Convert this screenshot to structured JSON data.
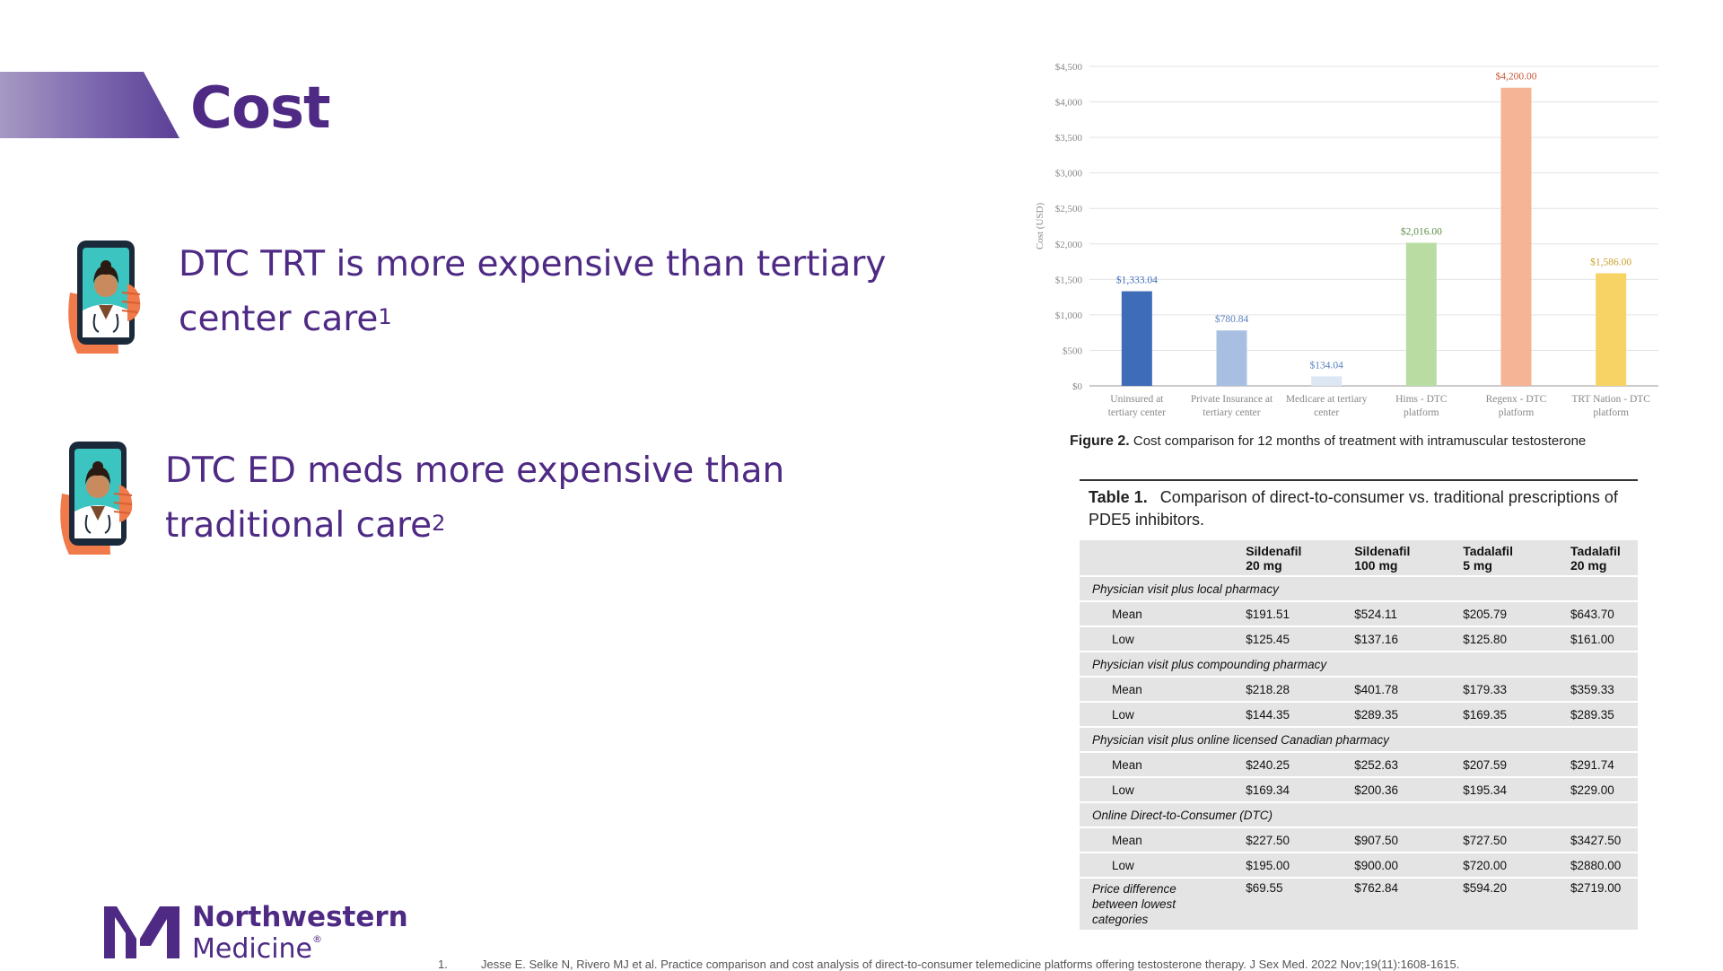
{
  "slide": {
    "title": "Cost",
    "bullets": [
      {
        "text": "DTC TRT is more expensive than tertiary center care",
        "sup": "1"
      },
      {
        "text": "DTC ED meds more expensive than traditional care",
        "sup": "2"
      }
    ],
    "logo": {
      "line1": "Northwestern",
      "line2": "Medicine",
      "mark": "®"
    },
    "footnote": {
      "num": "1.",
      "text": "Jesse E. Selke N, Rivero MJ et al. Practice comparison and cost analysis of direct-to-consumer telemedicine platforms  offering testosterone therapy. J Sex Med. 2022 Nov;19(11):1608-1615."
    }
  },
  "figure": {
    "caption_label": "Figure 2.",
    "caption_text": "Cost comparison for 12 months of treatment with intramuscular testosterone"
  },
  "chart_data": {
    "type": "bar",
    "ylabel": "Cost (USD)",
    "ylim": [
      0,
      4500
    ],
    "yticks": [
      "$0",
      "$500",
      "$1,000",
      "$1,500",
      "$2,000",
      "$2,500",
      "$3,000",
      "$3,500",
      "$4,000",
      "$4,500"
    ],
    "grid": true,
    "categories": [
      [
        "Uninsured at",
        "tertiary center"
      ],
      [
        "Private Insurance at",
        "tertiary center"
      ],
      [
        "Medicare at tertiary",
        "center"
      ],
      [
        "Hims - DTC",
        "platform"
      ],
      [
        "Regenx - DTC",
        "platform"
      ],
      [
        "TRT Nation - DTC",
        "platform"
      ]
    ],
    "values": [
      1333.04,
      780.84,
      134.04,
      2016.0,
      4200.0,
      1586.0
    ],
    "labels": [
      "$1,333.04",
      "$780.84",
      "$134.04",
      "$2,016.00",
      "$4,200.00",
      "$1,586.00"
    ],
    "colors": [
      "#3e6cb8",
      "#a9bfe2",
      "#dde6f3",
      "#b8dca2",
      "#f6b496",
      "#f7d264"
    ],
    "label_colors": [
      "#3e6cb8",
      "#5a7fbf",
      "#5a7fbf",
      "#5a8f46",
      "#c9573a",
      "#c9a02a"
    ]
  },
  "table": {
    "label": "Table 1.",
    "title": "Comparison of direct-to-consumer vs. traditional prescriptions of PDE5 inhibitors.",
    "columns": [
      [
        "Sildenafil",
        "20 mg"
      ],
      [
        "Sildenafil",
        "100 mg"
      ],
      [
        "Tadalafil",
        "5 mg"
      ],
      [
        "Tadalafil",
        "20 mg"
      ]
    ],
    "sections": [
      {
        "name": "Physician visit plus local pharmacy",
        "rows": [
          {
            "label": "Mean",
            "values": [
              "$191.51",
              "$524.11",
              "$205.79",
              "$643.70"
            ]
          },
          {
            "label": "Low",
            "values": [
              "$125.45",
              "$137.16",
              "$125.80",
              "$161.00"
            ]
          }
        ]
      },
      {
        "name": "Physician visit plus compounding pharmacy",
        "rows": [
          {
            "label": "Mean",
            "values": [
              "$218.28",
              "$401.78",
              "$179.33",
              "$359.33"
            ]
          },
          {
            "label": "Low",
            "values": [
              "$144.35",
              "$289.35",
              "$169.35",
              "$289.35"
            ]
          }
        ]
      },
      {
        "name": "Physician visit plus online licensed Canadian pharmacy",
        "rows": [
          {
            "label": "Mean",
            "values": [
              "$240.25",
              "$252.63",
              "$207.59",
              "$291.74"
            ]
          },
          {
            "label": "Low",
            "values": [
              "$169.34",
              "$200.36",
              "$195.34",
              "$229.00"
            ]
          }
        ]
      },
      {
        "name": "Online Direct-to-Consumer (DTC)",
        "rows": [
          {
            "label": "Mean",
            "values": [
              "$227.50",
              "$907.50",
              "$727.50",
              "$3427.50"
            ]
          },
          {
            "label": "Low",
            "values": [
              "$195.00",
              "$900.00",
              "$720.00",
              "$2880.00"
            ]
          }
        ]
      }
    ],
    "diff": {
      "label": [
        "Price difference",
        "between lowest",
        "categories"
      ],
      "values": [
        "$69.55",
        "$762.84",
        "$594.20",
        "$2719.00"
      ]
    }
  }
}
